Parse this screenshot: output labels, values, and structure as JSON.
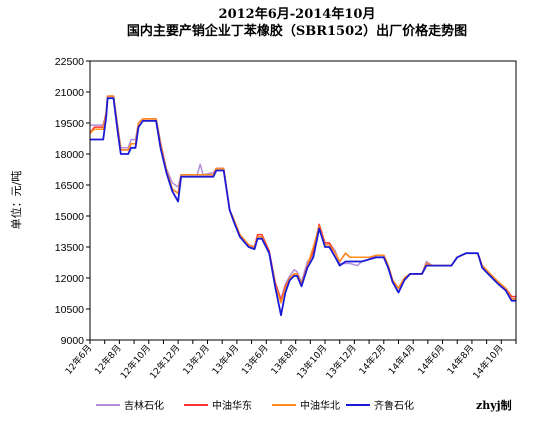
{
  "chart_data": {
    "type": "line",
    "title_line1": "2012年6月-2014年10月",
    "title_line2": "国内主要产销企业丁苯橡胶（SBR1502）出厂价格走势图",
    "ylabel": "单位：元/吨",
    "ylim": [
      9000,
      22500
    ],
    "yticks": [
      9000,
      10500,
      12000,
      13500,
      15000,
      16500,
      18000,
      19500,
      21000,
      22500
    ],
    "xlim": [
      0,
      29
    ],
    "x_ticks": [
      {
        "x": 0,
        "label": "12年6月"
      },
      {
        "x": 2,
        "label": "12年8月"
      },
      {
        "x": 4,
        "label": "12年10月"
      },
      {
        "x": 6,
        "label": "12年12月"
      },
      {
        "x": 8,
        "label": "13年2月"
      },
      {
        "x": 10,
        "label": "13年4月"
      },
      {
        "x": 12,
        "label": "13年6月"
      },
      {
        "x": 14,
        "label": "13年8月"
      },
      {
        "x": 16,
        "label": "13年10月"
      },
      {
        "x": 18,
        "label": "13年12月"
      },
      {
        "x": 20,
        "label": "14年2月"
      },
      {
        "x": 22,
        "label": "14年4月"
      },
      {
        "x": 24,
        "label": "14年6月"
      },
      {
        "x": 26,
        "label": "14年8月"
      },
      {
        "x": 28,
        "label": "14年10月"
      }
    ],
    "grid": false,
    "legend_position": "bottom",
    "source": "zhyj制",
    "series": [
      {
        "name": "吉林石化",
        "color": "#b38ed9",
        "values": [
          [
            0,
            19400
          ],
          [
            0.3,
            19400
          ],
          [
            0.9,
            19400
          ],
          [
            1.1,
            20000
          ],
          [
            1.2,
            20800
          ],
          [
            1.6,
            20800
          ],
          [
            1.9,
            19300
          ],
          [
            2.1,
            18300
          ],
          [
            2.6,
            18300
          ],
          [
            2.8,
            18700
          ],
          [
            3.1,
            18700
          ],
          [
            3.3,
            19500
          ],
          [
            3.6,
            19700
          ],
          [
            4.5,
            19700
          ],
          [
            4.8,
            18600
          ],
          [
            5.2,
            17300
          ],
          [
            5.6,
            16600
          ],
          [
            6.0,
            16400
          ],
          [
            6.2,
            17000
          ],
          [
            7.3,
            17000
          ],
          [
            7.5,
            17500
          ],
          [
            7.7,
            17000
          ],
          [
            8.4,
            17100
          ],
          [
            8.6,
            17300
          ],
          [
            9.1,
            17300
          ],
          [
            9.5,
            15300
          ],
          [
            9.8,
            14800
          ],
          [
            10.2,
            14100
          ],
          [
            10.8,
            13600
          ],
          [
            11.2,
            13500
          ],
          [
            11.4,
            14000
          ],
          [
            11.7,
            14000
          ],
          [
            12.2,
            13300
          ],
          [
            12.6,
            11800
          ],
          [
            13.0,
            11000
          ],
          [
            13.3,
            11700
          ],
          [
            13.6,
            12100
          ],
          [
            13.9,
            12400
          ],
          [
            14.1,
            12300
          ],
          [
            14.4,
            11800
          ],
          [
            14.8,
            12800
          ],
          [
            15.2,
            13100
          ],
          [
            15.6,
            14500
          ],
          [
            16.0,
            13700
          ],
          [
            16.3,
            13700
          ],
          [
            16.7,
            13300
          ],
          [
            17.0,
            12700
          ],
          [
            17.4,
            12700
          ],
          [
            17.7,
            12700
          ],
          [
            18.2,
            12600
          ],
          [
            18.5,
            12800
          ],
          [
            19.0,
            12900
          ],
          [
            19.5,
            13100
          ],
          [
            20.0,
            13100
          ],
          [
            20.3,
            12600
          ],
          [
            20.6,
            11900
          ],
          [
            21.0,
            11500
          ],
          [
            21.4,
            12000
          ],
          [
            21.8,
            12200
          ],
          [
            22.6,
            12200
          ],
          [
            22.9,
            12800
          ],
          [
            23.3,
            12600
          ],
          [
            24.6,
            12600
          ],
          [
            25.0,
            13000
          ],
          [
            25.6,
            13200
          ],
          [
            26.4,
            13200
          ],
          [
            26.7,
            12600
          ],
          [
            27.1,
            12300
          ],
          [
            27.8,
            11800
          ],
          [
            28.3,
            11500
          ],
          [
            28.7,
            11100
          ],
          [
            29,
            11100
          ]
        ]
      },
      {
        "name": "中油华东",
        "color": "#ff3333",
        "values": [
          [
            0,
            19000
          ],
          [
            0.3,
            19300
          ],
          [
            0.9,
            19300
          ],
          [
            1.1,
            20000
          ],
          [
            1.2,
            20800
          ],
          [
            1.6,
            20800
          ],
          [
            1.9,
            19200
          ],
          [
            2.1,
            18200
          ],
          [
            2.6,
            18200
          ],
          [
            2.8,
            18500
          ],
          [
            3.1,
            18500
          ],
          [
            3.3,
            19500
          ],
          [
            3.6,
            19700
          ],
          [
            4.5,
            19700
          ],
          [
            4.8,
            18500
          ],
          [
            5.2,
            17200
          ],
          [
            5.6,
            16300
          ],
          [
            6.0,
            16100
          ],
          [
            6.2,
            17000
          ],
          [
            8.4,
            17000
          ],
          [
            8.6,
            17300
          ],
          [
            9.1,
            17300
          ],
          [
            9.5,
            15300
          ],
          [
            9.8,
            14800
          ],
          [
            10.2,
            14100
          ],
          [
            10.8,
            13600
          ],
          [
            11.2,
            13500
          ],
          [
            11.4,
            14100
          ],
          [
            11.7,
            14100
          ],
          [
            12.2,
            13300
          ],
          [
            12.6,
            11800
          ],
          [
            13.0,
            10900
          ],
          [
            13.3,
            11600
          ],
          [
            13.6,
            12000
          ],
          [
            13.9,
            12200
          ],
          [
            14.1,
            12200
          ],
          [
            14.4,
            11700
          ],
          [
            14.8,
            12600
          ],
          [
            15.2,
            13300
          ],
          [
            15.6,
            14600
          ],
          [
            16.0,
            13700
          ],
          [
            16.3,
            13700
          ],
          [
            16.7,
            13200
          ],
          [
            17.0,
            12800
          ],
          [
            17.4,
            13200
          ],
          [
            17.7,
            13000
          ],
          [
            18.2,
            13000
          ],
          [
            18.5,
            13000
          ],
          [
            19.0,
            13000
          ],
          [
            19.5,
            13100
          ],
          [
            20.0,
            13100
          ],
          [
            20.3,
            12600
          ],
          [
            20.6,
            11900
          ],
          [
            21.0,
            11500
          ],
          [
            21.4,
            12000
          ],
          [
            21.8,
            12200
          ],
          [
            22.6,
            12200
          ],
          [
            22.9,
            12700
          ],
          [
            23.3,
            12600
          ],
          [
            24.6,
            12600
          ],
          [
            25.0,
            13000
          ],
          [
            25.6,
            13200
          ],
          [
            26.4,
            13200
          ],
          [
            26.7,
            12600
          ],
          [
            27.1,
            12300
          ],
          [
            27.8,
            11800
          ],
          [
            28.3,
            11500
          ],
          [
            28.7,
            11100
          ],
          [
            29,
            11100
          ]
        ]
      },
      {
        "name": "中油华北",
        "color": "#ff8c1a",
        "values": [
          [
            0,
            19000
          ],
          [
            0.3,
            19200
          ],
          [
            0.9,
            19200
          ],
          [
            1.1,
            20000
          ],
          [
            1.2,
            20800
          ],
          [
            1.6,
            20800
          ],
          [
            1.9,
            19200
          ],
          [
            2.1,
            18200
          ],
          [
            2.6,
            18200
          ],
          [
            2.8,
            18500
          ],
          [
            3.1,
            18500
          ],
          [
            3.3,
            19500
          ],
          [
            3.6,
            19700
          ],
          [
            4.5,
            19700
          ],
          [
            4.8,
            18500
          ],
          [
            5.2,
            17200
          ],
          [
            5.6,
            16300
          ],
          [
            6.0,
            16100
          ],
          [
            6.2,
            17000
          ],
          [
            8.4,
            17000
          ],
          [
            8.6,
            17300
          ],
          [
            9.1,
            17300
          ],
          [
            9.5,
            15300
          ],
          [
            9.8,
            14800
          ],
          [
            10.2,
            14100
          ],
          [
            10.8,
            13600
          ],
          [
            11.2,
            13500
          ],
          [
            11.4,
            14000
          ],
          [
            11.7,
            14000
          ],
          [
            12.2,
            13200
          ],
          [
            12.6,
            11700
          ],
          [
            13.0,
            10800
          ],
          [
            13.3,
            11500
          ],
          [
            13.6,
            12000
          ],
          [
            13.9,
            12200
          ],
          [
            14.1,
            12200
          ],
          [
            14.4,
            11700
          ],
          [
            14.8,
            12600
          ],
          [
            15.2,
            13500
          ],
          [
            15.6,
            14500
          ],
          [
            16.0,
            13600
          ],
          [
            16.3,
            13600
          ],
          [
            16.7,
            13200
          ],
          [
            17.0,
            12800
          ],
          [
            17.4,
            13200
          ],
          [
            17.7,
            13000
          ],
          [
            18.2,
            13000
          ],
          [
            18.5,
            13000
          ],
          [
            19.0,
            13000
          ],
          [
            19.5,
            13100
          ],
          [
            20.0,
            13100
          ],
          [
            20.3,
            12600
          ],
          [
            20.6,
            11900
          ],
          [
            21.0,
            11500
          ],
          [
            21.4,
            12000
          ],
          [
            21.8,
            12200
          ],
          [
            22.6,
            12200
          ],
          [
            22.9,
            12700
          ],
          [
            23.3,
            12600
          ],
          [
            24.6,
            12600
          ],
          [
            25.0,
            13000
          ],
          [
            25.6,
            13200
          ],
          [
            26.4,
            13200
          ],
          [
            26.7,
            12600
          ],
          [
            27.1,
            12300
          ],
          [
            27.8,
            11800
          ],
          [
            28.3,
            11500
          ],
          [
            28.7,
            11000
          ],
          [
            29,
            11000
          ]
        ]
      },
      {
        "name": "齐鲁石化",
        "color": "#1a1ad6",
        "values": [
          [
            0,
            18700
          ],
          [
            0.3,
            18700
          ],
          [
            0.9,
            18700
          ],
          [
            1.1,
            19800
          ],
          [
            1.2,
            20700
          ],
          [
            1.6,
            20700
          ],
          [
            1.9,
            19000
          ],
          [
            2.1,
            18000
          ],
          [
            2.6,
            18000
          ],
          [
            2.8,
            18300
          ],
          [
            3.1,
            18300
          ],
          [
            3.3,
            19300
          ],
          [
            3.6,
            19600
          ],
          [
            4.5,
            19600
          ],
          [
            4.8,
            18300
          ],
          [
            5.2,
            17100
          ],
          [
            5.6,
            16200
          ],
          [
            6.0,
            15700
          ],
          [
            6.2,
            16900
          ],
          [
            8.4,
            16900
          ],
          [
            8.6,
            17200
          ],
          [
            9.1,
            17200
          ],
          [
            9.5,
            15300
          ],
          [
            9.8,
            14700
          ],
          [
            10.2,
            14000
          ],
          [
            10.8,
            13500
          ],
          [
            11.2,
            13400
          ],
          [
            11.4,
            13900
          ],
          [
            11.7,
            13900
          ],
          [
            12.2,
            13200
          ],
          [
            12.6,
            11600
          ],
          [
            13.0,
            10200
          ],
          [
            13.3,
            11300
          ],
          [
            13.6,
            11900
          ],
          [
            13.9,
            12100
          ],
          [
            14.1,
            12100
          ],
          [
            14.4,
            11600
          ],
          [
            14.8,
            12500
          ],
          [
            15.2,
            13000
          ],
          [
            15.6,
            14400
          ],
          [
            16.0,
            13500
          ],
          [
            16.3,
            13500
          ],
          [
            16.7,
            13000
          ],
          [
            17.0,
            12600
          ],
          [
            17.4,
            12800
          ],
          [
            17.7,
            12800
          ],
          [
            18.2,
            12800
          ],
          [
            18.5,
            12800
          ],
          [
            19.0,
            12900
          ],
          [
            19.5,
            13000
          ],
          [
            20.0,
            13000
          ],
          [
            20.3,
            12500
          ],
          [
            20.6,
            11800
          ],
          [
            21.0,
            11300
          ],
          [
            21.4,
            11900
          ],
          [
            21.8,
            12200
          ],
          [
            22.6,
            12200
          ],
          [
            22.9,
            12600
          ],
          [
            23.3,
            12600
          ],
          [
            24.6,
            12600
          ],
          [
            25.0,
            13000
          ],
          [
            25.6,
            13200
          ],
          [
            26.4,
            13200
          ],
          [
            26.7,
            12500
          ],
          [
            27.1,
            12200
          ],
          [
            27.8,
            11700
          ],
          [
            28.3,
            11400
          ],
          [
            28.7,
            10900
          ],
          [
            29,
            10900
          ]
        ]
      }
    ]
  }
}
